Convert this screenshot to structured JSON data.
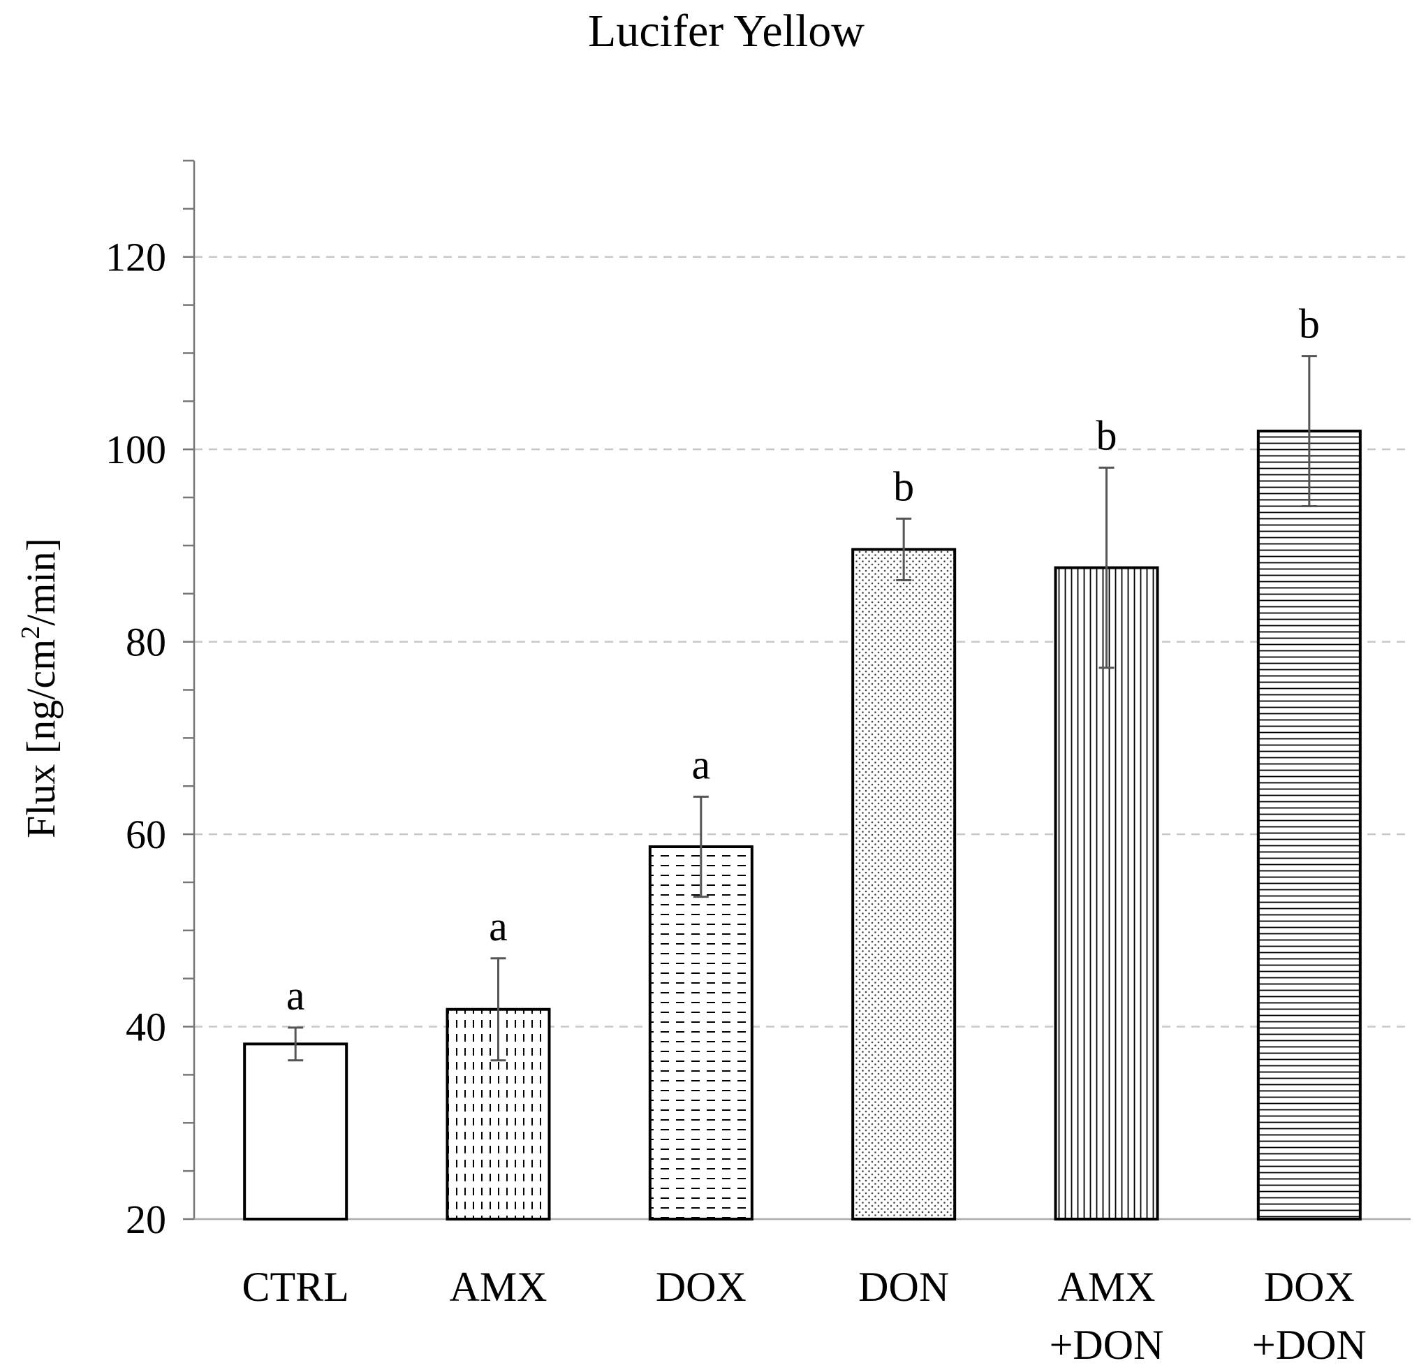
{
  "chart_data": {
    "type": "bar",
    "title": "Lucifer Yellow",
    "ylabel_main": "Flux [ng/cm",
    "ylabel_sup": "2",
    "ylabel_tail": "/min]",
    "xlabel": "",
    "ylim": [
      20,
      130
    ],
    "yticks": [
      20,
      40,
      60,
      80,
      100,
      120
    ],
    "minor_step": 5,
    "grid": "dashed horizontal at major ticks",
    "categories": [
      {
        "line1": "CTRL",
        "line2": ""
      },
      {
        "line1": "AMX",
        "line2": ""
      },
      {
        "line1": "DOX",
        "line2": ""
      },
      {
        "line1": "DON",
        "line2": ""
      },
      {
        "line1": "AMX",
        "line2": "+DON"
      },
      {
        "line1": "DOX",
        "line2": "+DON"
      }
    ],
    "values": [
      38.2,
      41.8,
      58.7,
      89.6,
      87.7,
      101.9
    ],
    "errors": [
      1.7,
      5.3,
      5.2,
      3.2,
      10.4,
      7.8
    ],
    "significance": [
      "a",
      "a",
      "a",
      "b",
      "b",
      "b"
    ],
    "patterns": [
      "none",
      "dashed-vertical",
      "dashed-horizontal",
      "dots",
      "vertical-lines",
      "horizontal-lines"
    ]
  }
}
